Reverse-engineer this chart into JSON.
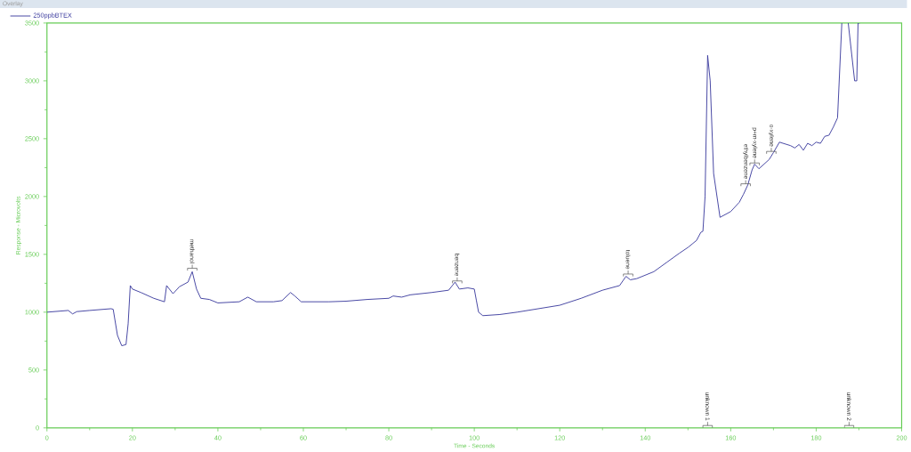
{
  "chart_data": {
    "type": "line",
    "title": "Overlay",
    "xlabel": "Time - Seconds",
    "ylabel": "Response - Microvolts",
    "xlim": [
      0,
      200
    ],
    "xticks": [
      0,
      20,
      40,
      60,
      80,
      100,
      120,
      140,
      160,
      180,
      200
    ],
    "ylim": [
      0,
      3500
    ],
    "yticks": [
      0,
      500,
      1000,
      1500,
      2000,
      2500,
      3000,
      3500
    ],
    "grid": false,
    "legend": "top left",
    "marker": "none",
    "line_style": "solid",
    "series": [
      {
        "name": "250ppbBTEX",
        "color": "#3b3b9e",
        "x": [
          0,
          5,
          6,
          7,
          10,
          15,
          15.5,
          16.5,
          17.5,
          18.5,
          19,
          19.5,
          20,
          22,
          25,
          27.5,
          28,
          29.5,
          31,
          33,
          34,
          35,
          36,
          38,
          40,
          45,
          47,
          49,
          53,
          55,
          57,
          58,
          59.5,
          63,
          66,
          70,
          75,
          80,
          81,
          83,
          85,
          90,
          94,
          95.5,
          96.5,
          98.5,
          100,
          100.5,
          101,
          102,
          106,
          110,
          115,
          120,
          125,
          130,
          134,
          135.5,
          136.5,
          138,
          142,
          145,
          148,
          150,
          151,
          152,
          153,
          153.5,
          154,
          154.6,
          155.2,
          156,
          157.5,
          160,
          162,
          163,
          164,
          165,
          165.6,
          166.6,
          169,
          170,
          171.4,
          174,
          175,
          176,
          177,
          178,
          179,
          180,
          181,
          182,
          183,
          184,
          185,
          186,
          186.5,
          187.5,
          189,
          189.5,
          189.8,
          190.2
        ],
        "values": [
          1000,
          1015,
          985,
          1005,
          1015,
          1030,
          1025,
          800,
          710,
          720,
          900,
          1230,
          1200,
          1170,
          1120,
          1090,
          1230,
          1160,
          1220,
          1260,
          1350,
          1200,
          1120,
          1110,
          1080,
          1090,
          1130,
          1090,
          1090,
          1100,
          1170,
          1140,
          1090,
          1090,
          1090,
          1095,
          1110,
          1120,
          1140,
          1130,
          1150,
          1170,
          1190,
          1260,
          1200,
          1210,
          1200,
          1100,
          1000,
          970,
          980,
          1000,
          1030,
          1060,
          1120,
          1190,
          1230,
          1310,
          1280,
          1290,
          1350,
          1430,
          1510,
          1560,
          1590,
          1620,
          1690,
          1700,
          2000,
          3220,
          3000,
          2200,
          1820,
          1870,
          1950,
          2020,
          2100,
          2230,
          2280,
          2240,
          2320,
          2380,
          2470,
          2440,
          2420,
          2450,
          2400,
          2460,
          2440,
          2470,
          2460,
          2520,
          2530,
          2600,
          2680,
          3500,
          null,
          3500,
          3000,
          3000,
          3500,
          3500
        ]
      }
    ],
    "annotations": [
      {
        "text": "methanol",
        "x": 34,
        "y": 1380
      },
      {
        "text": "benzene",
        "x": 96,
        "y": 1270
      },
      {
        "text": "toluene",
        "x": 136,
        "y": 1330
      },
      {
        "text": "ethylbenzene",
        "x": 163.5,
        "y": 2110
      },
      {
        "text": "p+m-xylene",
        "x": 165.6,
        "y": 2290
      },
      {
        "text": "o-xylene",
        "x": 169.5,
        "y": 2390
      },
      "unknown 1",
      "unknown 2"
    ]
  }
}
